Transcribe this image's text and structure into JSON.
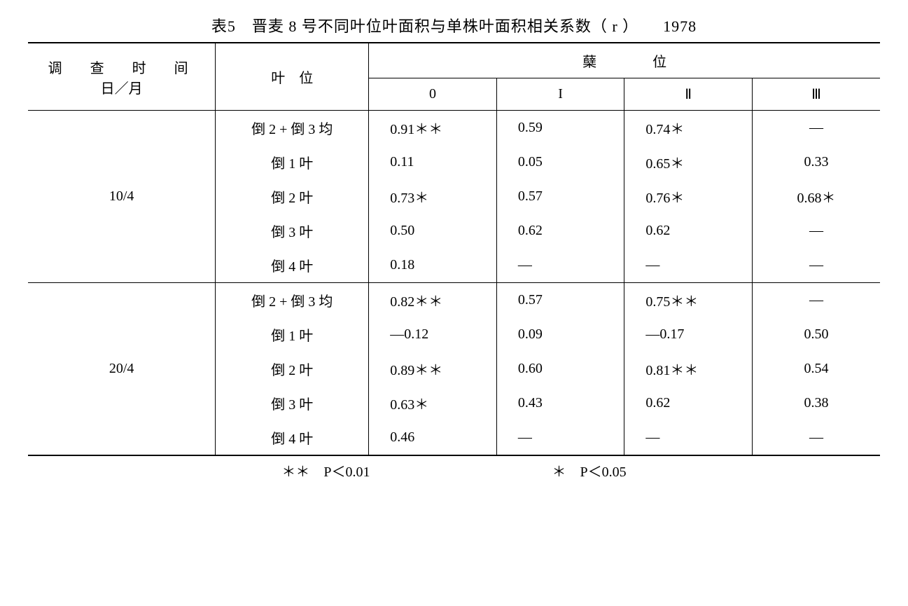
{
  "title": "表5　晋麦 8 号不同叶位叶面积与单株叶面积相关系数（ r ）　　1978",
  "header": {
    "time_label_line1": "调　查　时　间",
    "time_label_line2": "日／月",
    "leaf_label": "叶　位",
    "tiller_label": "蘖　　　　位",
    "cols": {
      "c0": "0",
      "c1": "I",
      "c2": "Ⅱ",
      "c3": "Ⅲ"
    }
  },
  "groups": [
    {
      "date": "10/4",
      "rows": [
        {
          "leaf": "倒 2 + 倒 3 均",
          "v0": "0.91＊＊",
          "v1": "0.59",
          "v2": "0.74＊",
          "v3": "—"
        },
        {
          "leaf": "倒 1 叶",
          "v0": "0.11",
          "v1": "0.05",
          "v2": "0.65＊",
          "v3": "0.33"
        },
        {
          "leaf": "倒 2 叶",
          "v0": "0.73＊",
          "v1": "0.57",
          "v2": "0.76＊",
          "v3": "0.68＊"
        },
        {
          "leaf": "倒 3 叶",
          "v0": "0.50",
          "v1": "0.62",
          "v2": "0.62",
          "v3": "—"
        },
        {
          "leaf": "倒 4 叶",
          "v0": "0.18",
          "v1": "—",
          "v2": "—",
          "v3": "—"
        }
      ]
    },
    {
      "date": "20/4",
      "rows": [
        {
          "leaf": "倒 2 + 倒 3 均",
          "v0": "0.82＊＊",
          "v1": "0.57",
          "v2": "0.75＊＊",
          "v3": "—"
        },
        {
          "leaf": "倒 1 叶",
          "v0": "—0.12",
          "v1": "0.09",
          "v2": "—0.17",
          "v3": "0.50"
        },
        {
          "leaf": "倒 2 叶",
          "v0": "0.89＊＊",
          "v1": "0.60",
          "v2": "0.81＊＊",
          "v3": "0.54"
        },
        {
          "leaf": "倒 3 叶",
          "v0": "0.63＊",
          "v1": "0.43",
          "v2": "0.62",
          "v3": "0.38"
        },
        {
          "leaf": "倒 4 叶",
          "v0": "0.46",
          "v1": "—",
          "v2": "—",
          "v3": "—"
        }
      ]
    }
  ],
  "footnote": {
    "p01": "＊＊　P＜0.01",
    "p05": "＊　P＜0.05"
  }
}
